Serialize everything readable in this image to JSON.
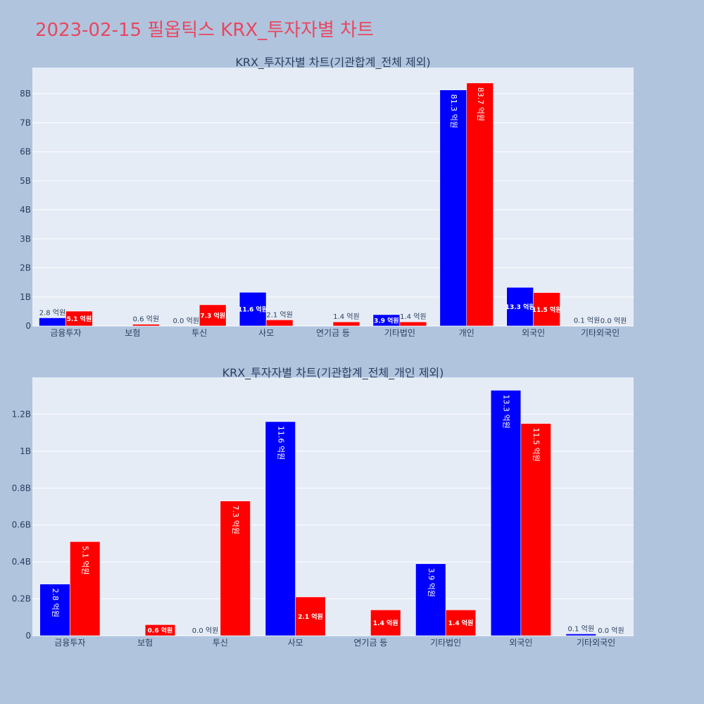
{
  "page": {
    "title": "2023-02-15 필옵틱스 KRX_투자자별 차트"
  },
  "colors": {
    "background": "#b0c4de",
    "plot_bg": "#e5ecf6",
    "buy": "#0000ff",
    "sell": "#ff0000",
    "title": "#e8475f",
    "text": "#2a3f5f"
  },
  "chart_data": [
    {
      "type": "bar",
      "title": "KRX_투자자별 차트(기관합계_전체 제외)",
      "categories": [
        "금융투자",
        "보험",
        "투신",
        "사모",
        "연기금 등",
        "기타법인",
        "개인",
        "외국인",
        "기타외국인"
      ],
      "ylim": [
        0,
        8900000000.0
      ],
      "yticks": [
        0,
        1000000000.0,
        2000000000.0,
        3000000000.0,
        4000000000.0,
        5000000000.0,
        6000000000.0,
        7000000000.0,
        8000000000.0
      ],
      "ytick_labels": [
        "0",
        "1B",
        "2B",
        "3B",
        "4B",
        "5B",
        "6B",
        "7B",
        "8B"
      ],
      "series": [
        {
          "color": "#0000ff",
          "values": [
            280000000.0,
            0,
            0,
            1160000000.0,
            0,
            390000000.0,
            8130000000.0,
            1330000000.0,
            10000000.0
          ],
          "labels": [
            "2.8 억원",
            "",
            "0.0 억원",
            "11.6 억원",
            "",
            "3.9 억원",
            "81.3 억원",
            "13.3 억원",
            "0.1 억원"
          ]
        },
        {
          "color": "#ff0000",
          "values": [
            510000000.0,
            60000000.0,
            730000000.0,
            210000000.0,
            140000000.0,
            140000000.0,
            8370000000.0,
            1150000000.0,
            0
          ],
          "labels": [
            "5.1 억원",
            "0.6 억원",
            "7.3 억원",
            "2.1 억원",
            "1.4 억원",
            "1.4 억원",
            "83.7 억원",
            "11.5 억원",
            "0.0 억원"
          ]
        }
      ],
      "grid": true,
      "legend": "none"
    },
    {
      "type": "bar",
      "title": "KRX_투자자별 차트(기관합계_전체_개인 제외)",
      "categories": [
        "금융투자",
        "보험",
        "투신",
        "사모",
        "연기금 등",
        "기타법인",
        "외국인",
        "기타외국인"
      ],
      "ylim": [
        0,
        1400000000.0
      ],
      "yticks": [
        0,
        200000000.0,
        400000000.0,
        600000000.0,
        800000000.0,
        1000000000.0,
        1200000000.0
      ],
      "ytick_labels": [
        "0",
        "0.2B",
        "0.4B",
        "0.6B",
        "0.8B",
        "1B",
        "1.2B"
      ],
      "series": [
        {
          "color": "#0000ff",
          "values": [
            280000000.0,
            0,
            0,
            1160000000.0,
            0,
            390000000.0,
            1330000000.0,
            10000000.0
          ],
          "labels": [
            "2.8 억원",
            "",
            "0.0 억원",
            "11.6 억원",
            "",
            "3.9 억원",
            "13.3 억원",
            "0.1 억원"
          ]
        },
        {
          "color": "#ff0000",
          "values": [
            510000000.0,
            60000000.0,
            730000000.0,
            210000000.0,
            140000000.0,
            140000000.0,
            1150000000.0,
            0
          ],
          "labels": [
            "5.1 억원",
            "0.6 억원",
            "7.3 억원",
            "2.1 억원",
            "1.4 억원",
            "1.4 억원",
            "11.5 억원",
            "0.0 억원"
          ]
        }
      ],
      "grid": true,
      "legend": "none"
    }
  ]
}
